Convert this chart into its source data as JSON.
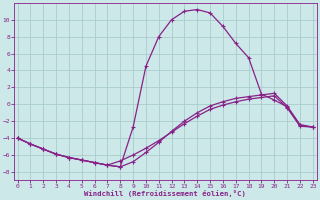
{
  "xlabel": "Windchill (Refroidissement éolien,°C)",
  "xlim": [
    -0.3,
    23.3
  ],
  "ylim": [
    -9.0,
    12.0
  ],
  "yticks": [
    -8,
    -6,
    -4,
    -2,
    0,
    2,
    4,
    6,
    8,
    10
  ],
  "xticks": [
    0,
    1,
    2,
    3,
    4,
    5,
    6,
    7,
    8,
    9,
    10,
    11,
    12,
    13,
    14,
    15,
    16,
    17,
    18,
    19,
    20,
    21,
    22,
    23
  ],
  "background_color": "#cce8e8",
  "grid_color": "#aacccc",
  "line_color": "#882288",
  "line_width": 0.9,
  "marker_size": 3.5,
  "curve1_x": [
    0,
    1,
    2,
    3,
    4,
    5,
    6,
    7,
    8,
    9,
    10,
    11,
    12,
    13,
    14,
    15,
    16,
    17,
    18,
    19,
    20,
    21,
    22,
    23
  ],
  "curve1_y": [
    -4.0,
    -4.7,
    -5.3,
    -5.9,
    -6.3,
    -6.6,
    -6.9,
    -7.2,
    -7.4,
    -2.7,
    4.5,
    8.0,
    10.0,
    11.0,
    11.2,
    10.8,
    9.2,
    7.2,
    5.5,
    1.2,
    0.5,
    -0.3,
    -2.5,
    -2.7
  ],
  "curve2_x": [
    0,
    1,
    2,
    3,
    4,
    5,
    6,
    7,
    8,
    9,
    10,
    11,
    12,
    13,
    14,
    15,
    16,
    17,
    18,
    19,
    20,
    21,
    22,
    23
  ],
  "curve2_y": [
    -4.0,
    -4.7,
    -5.3,
    -5.9,
    -6.3,
    -6.6,
    -6.9,
    -7.2,
    -7.4,
    -6.8,
    -5.7,
    -4.5,
    -3.2,
    -2.0,
    -1.0,
    -0.2,
    0.3,
    0.7,
    0.9,
    1.1,
    1.3,
    -0.2,
    -2.4,
    -2.7
  ],
  "curve3_x": [
    0,
    1,
    2,
    3,
    4,
    5,
    6,
    7,
    8,
    9,
    10,
    11,
    12,
    13,
    14,
    15,
    16,
    17,
    18,
    19,
    20,
    21,
    22,
    23
  ],
  "curve3_y": [
    -4.0,
    -4.7,
    -5.3,
    -5.9,
    -6.3,
    -6.6,
    -6.9,
    -7.2,
    -6.7,
    -6.0,
    -5.2,
    -4.3,
    -3.3,
    -2.3,
    -1.4,
    -0.6,
    -0.1,
    0.3,
    0.6,
    0.8,
    1.0,
    -0.4,
    -2.6,
    -2.7
  ]
}
